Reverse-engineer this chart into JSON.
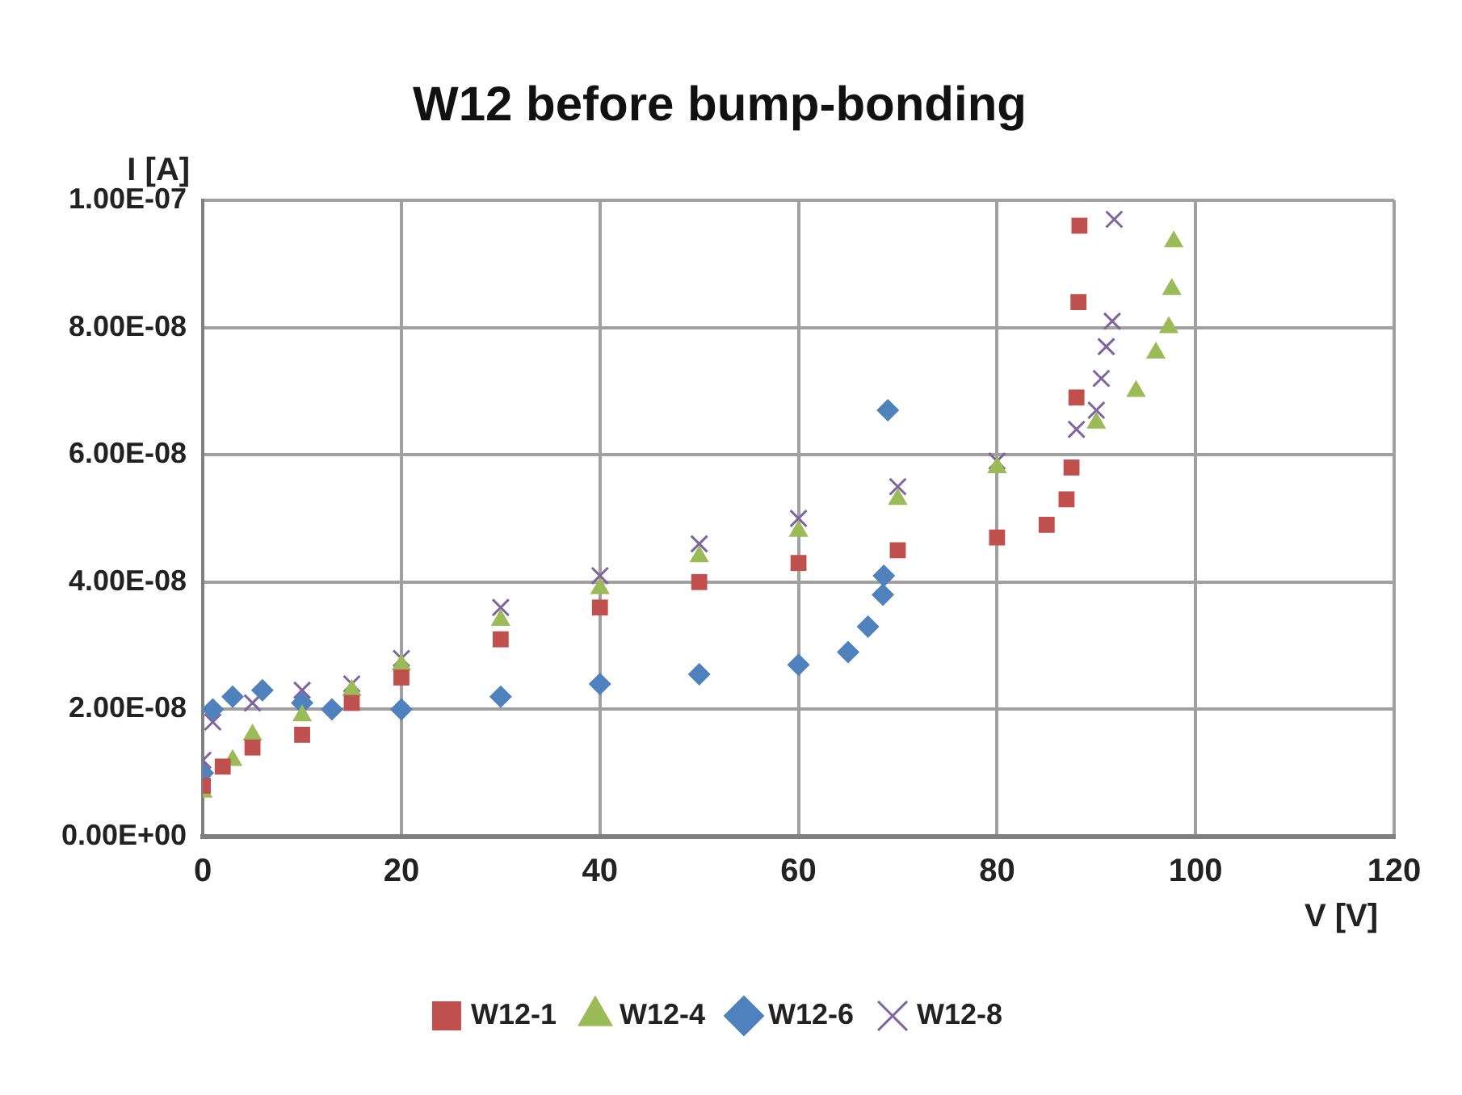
{
  "chart_data": {
    "type": "scatter",
    "title": "W12 before bump-bonding",
    "xlabel": "V [V]",
    "ylabel": "I [A]",
    "xlim": [
      0,
      120
    ],
    "xticks": [
      0,
      20,
      40,
      60,
      80,
      100,
      120
    ],
    "ylim": [
      0,
      1e-07
    ],
    "yticks": [
      {
        "value": 0,
        "label": "0.00E+00"
      },
      {
        "value": 2e-08,
        "label": "2.00E-08"
      },
      {
        "value": 4e-08,
        "label": "4.00E-08"
      },
      {
        "value": 6e-08,
        "label": "6.00E-08"
      },
      {
        "value": 8e-08,
        "label": "8.00E-08"
      },
      {
        "value": 1e-07,
        "label": "1.00E-07"
      }
    ],
    "grid": true,
    "legend": "bottom",
    "series": [
      {
        "name": "W12-1",
        "color": "#c0504d",
        "marker": "square",
        "x": [
          0,
          2,
          5,
          10,
          15,
          20,
          30,
          40,
          50,
          60,
          70,
          80,
          85,
          87,
          87.5,
          88,
          88.2,
          88.3
        ],
        "values": [
          8e-09,
          1.1e-08,
          1.4e-08,
          1.6e-08,
          2.1e-08,
          2.5e-08,
          3.1e-08,
          3.6e-08,
          4e-08,
          4.3e-08,
          4.5e-08,
          4.7e-08,
          4.9e-08,
          5.3e-08,
          5.8e-08,
          6.9e-08,
          8.4e-08,
          9.6e-08
        ]
      },
      {
        "name": "W12-4",
        "color": "#9bbb59",
        "marker": "triangle",
        "x": [
          0,
          3,
          5,
          10,
          15,
          20,
          30,
          40,
          50,
          60,
          70,
          80,
          90,
          94,
          96,
          97.3,
          97.6,
          97.8
        ],
        "values": [
          7e-09,
          1.2e-08,
          1.6e-08,
          1.9e-08,
          2.3e-08,
          2.7e-08,
          3.4e-08,
          3.9e-08,
          4.4e-08,
          4.8e-08,
          5.3e-08,
          5.8e-08,
          6.5e-08,
          7e-08,
          7.6e-08,
          8e-08,
          8.6e-08,
          9.35e-08
        ]
      },
      {
        "name": "W12-6",
        "color": "#4f81bd",
        "marker": "diamond",
        "x": [
          0,
          1,
          3,
          6,
          10,
          13,
          20,
          30,
          40,
          50,
          60,
          65,
          67,
          68.5,
          68.6,
          69
        ],
        "values": [
          1e-08,
          2e-08,
          2.2e-08,
          2.3e-08,
          2.1e-08,
          2e-08,
          2e-08,
          2.2e-08,
          2.4e-08,
          2.55e-08,
          2.7e-08,
          2.9e-08,
          3.3e-08,
          3.8e-08,
          4.1e-08,
          6.7e-08
        ]
      },
      {
        "name": "W12-8",
        "color": "#8064a2",
        "marker": "cross",
        "x": [
          0,
          1,
          5,
          10,
          15,
          20,
          30,
          40,
          50,
          60,
          70,
          80,
          88,
          90,
          90.5,
          91,
          91.6,
          91.8
        ],
        "values": [
          1.2e-08,
          1.8e-08,
          2.1e-08,
          2.3e-08,
          2.4e-08,
          2.8e-08,
          3.6e-08,
          4.1e-08,
          4.6e-08,
          5e-08,
          5.5e-08,
          5.9e-08,
          6.4e-08,
          6.7e-08,
          7.2e-08,
          7.7e-08,
          8.1e-08,
          9.7e-08
        ]
      }
    ]
  }
}
